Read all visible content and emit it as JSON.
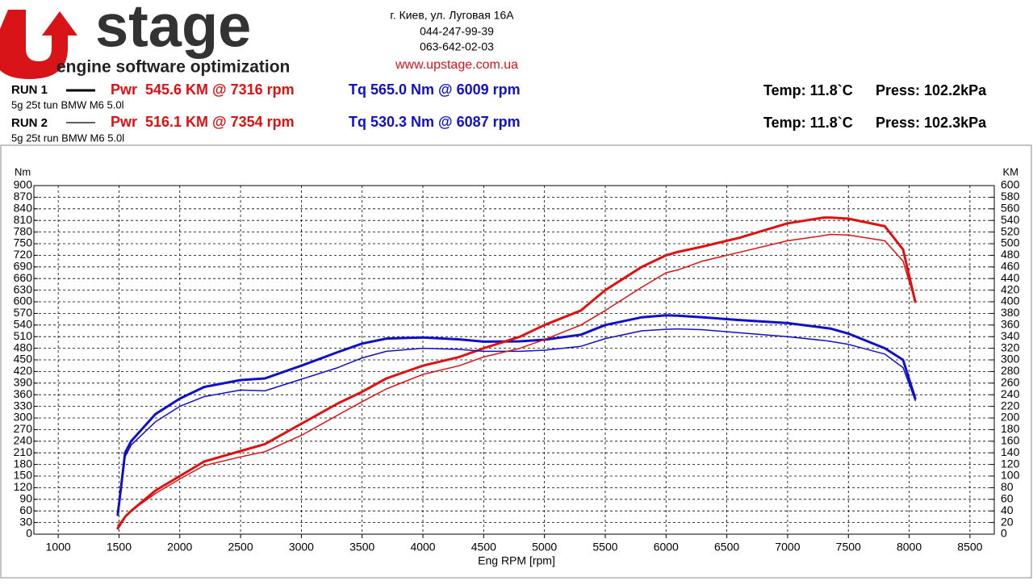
{
  "header": {
    "logo": "stage",
    "tagline": "engine software optimization",
    "address": "г. Киев, ул. Луговая 16А",
    "phone1": "044-247-99-39",
    "phone2": "063-642-02-03",
    "website": "www.upstage.com.ua",
    "runs": [
      {
        "label": "RUN 1",
        "power": "Pwr  545.6 KM @ 7316 rpm",
        "torque": "Tq 565.0 Nm @ 6009 rpm",
        "temp": "Temp: 11.8`C",
        "press": "Press: 102.2kPa",
        "car": "5g 25t tun BMW M6 5.0l"
      },
      {
        "label": "RUN 2",
        "power": "Pwr  516.1 KM @ 7354 rpm",
        "torque": "Tq 530.3 Nm @ 6087 rpm",
        "temp": "Temp: 11.8`C",
        "press": "Press: 102.3kPa",
        "car": "5g 25t run BMW M6 5.0l"
      }
    ]
  },
  "chart_data": {
    "type": "line",
    "ylabel": "Nm",
    "y2label": "KM",
    "xlabel": "Eng RPM [rpm]",
    "x": [
      1490,
      1550,
      1600,
      1800,
      2000,
      2200,
      2500,
      2700,
      3000,
      3300,
      3500,
      3700,
      4000,
      4300,
      4500,
      4800,
      5000,
      5300,
      5500,
      5800,
      6000,
      6100,
      6300,
      6600,
      7000,
      7300,
      7350,
      7500,
      7800,
      7950,
      8050
    ],
    "series": [
      {
        "color": "#1010c8",
        "values": [
          50,
          210,
          240,
          310,
          350,
          380,
          398,
          402,
          435,
          470,
          492,
          505,
          508,
          503,
          497,
          498,
          502,
          515,
          540,
          560,
          565,
          564,
          560,
          553,
          545,
          533,
          531,
          518,
          480,
          450,
          350
        ]
      },
      {
        "color": "#e01010",
        "axis": "y2",
        "values": [
          10,
          30,
          40,
          75,
          100,
          125,
          143,
          155,
          190,
          225,
          245,
          268,
          290,
          305,
          320,
          340,
          360,
          385,
          420,
          460,
          480,
          486,
          495,
          510,
          535,
          545,
          545,
          543,
          530,
          490,
          400
        ]
      },
      {
        "color": "#1010c8",
        "values": [
          50,
          200,
          230,
          290,
          330,
          355,
          372,
          370,
          400,
          430,
          455,
          472,
          480,
          477,
          472,
          472,
          475,
          485,
          505,
          525,
          529,
          530,
          528,
          520,
          510,
          500,
          498,
          490,
          465,
          430,
          345
        ]
      },
      {
        "color": "#e01010",
        "axis": "y2",
        "values": [
          15,
          30,
          40,
          70,
          95,
          118,
          133,
          142,
          170,
          205,
          228,
          250,
          275,
          290,
          305,
          320,
          335,
          360,
          385,
          425,
          450,
          455,
          470,
          485,
          505,
          514,
          516,
          515,
          505,
          470,
          400
        ]
      }
    ],
    "xlim": [
      800,
      8700
    ],
    "xticks": [
      1000,
      1500,
      2000,
      2500,
      3000,
      3500,
      4000,
      4500,
      5000,
      5500,
      6000,
      6500,
      7000,
      7500,
      8000,
      8500
    ],
    "ylim": [
      0,
      900
    ],
    "yticks": [
      0,
      30,
      60,
      90,
      120,
      150,
      180,
      210,
      240,
      270,
      300,
      330,
      360,
      390,
      420,
      450,
      480,
      510,
      540,
      570,
      600,
      630,
      660,
      690,
      720,
      750,
      780,
      810,
      840,
      870,
      900
    ],
    "y2lim": [
      0,
      600
    ],
    "y2ticks": [
      0,
      20,
      40,
      60,
      80,
      100,
      120,
      140,
      160,
      180,
      200,
      220,
      240,
      260,
      280,
      300,
      320,
      340,
      360,
      380,
      400,
      420,
      440,
      460,
      480,
      500,
      520,
      540,
      560,
      580,
      600
    ],
    "grid": true
  }
}
